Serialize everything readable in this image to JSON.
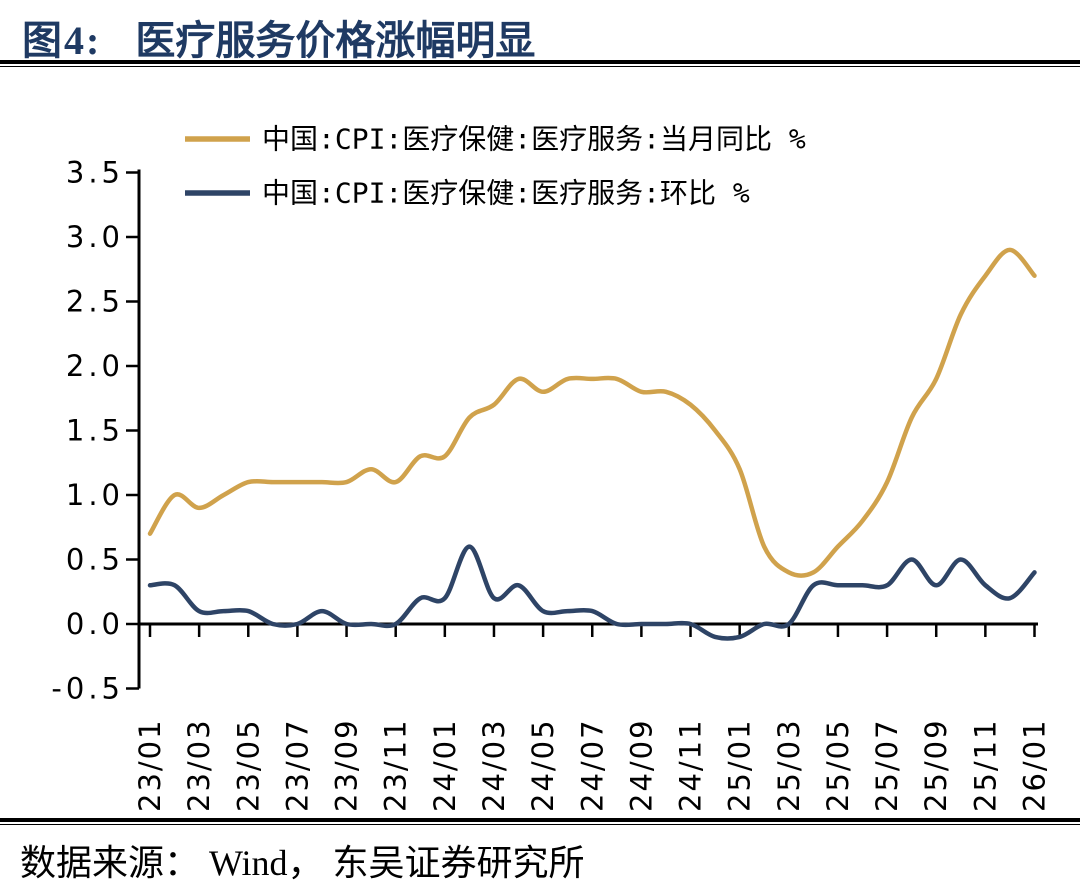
{
  "header": {
    "figure_label": "图4:",
    "title": "医疗服务价格涨幅明显"
  },
  "footer": {
    "source": "数据来源： Wind， 东吴证券研究所"
  },
  "colors": {
    "accent_gold": "#D0A24C",
    "accent_navy": "#2E4466",
    "title_navy": "#1F3A63",
    "axis_black": "#000000",
    "background": "#FFFFFF"
  },
  "chart_data": {
    "type": "line",
    "grid": false,
    "legend_position": "top-left",
    "ylim": [
      -0.5,
      3.5
    ],
    "y_tick_labels": [
      "3.5",
      "3.0",
      "2.5",
      "2.0",
      "1.5",
      "1.0",
      "0.5",
      "0.0",
      "-0.5"
    ],
    "x_tick_labels": [
      "23/01",
      "23/03",
      "23/05",
      "23/07",
      "23/09",
      "23/11",
      "24/01",
      "24/03",
      "24/05",
      "24/07",
      "24/09",
      "24/11",
      "25/01",
      "25/03",
      "25/05",
      "25/07",
      "25/09",
      "25/11",
      "26/01"
    ],
    "x_frequency": "monthly",
    "x_range": [
      "2023-01",
      "2026-01"
    ],
    "series": [
      {
        "name": "中国:CPI:医疗保健:医疗服务:当月同比 %",
        "color": "#D0A24C",
        "values": [
          0.7,
          1.0,
          0.9,
          1.0,
          1.1,
          1.1,
          1.1,
          1.1,
          1.1,
          1.2,
          1.1,
          1.3,
          1.3,
          1.6,
          1.7,
          1.9,
          1.8,
          1.9,
          1.9,
          1.9,
          1.8,
          1.8,
          1.7,
          1.5,
          1.2,
          0.6,
          0.4,
          0.4,
          0.6,
          0.8,
          1.1,
          1.6,
          1.9,
          2.4,
          2.7,
          2.9,
          2.7
        ]
      },
      {
        "name": "中国:CPI:医疗保健:医疗服务:环比 %",
        "color": "#2E4466",
        "values": [
          0.3,
          0.3,
          0.1,
          0.1,
          0.1,
          0.0,
          0.0,
          0.1,
          0.0,
          0.0,
          0.0,
          0.2,
          0.2,
          0.6,
          0.2,
          0.3,
          0.1,
          0.1,
          0.1,
          0.0,
          0.0,
          0.0,
          0.0,
          -0.1,
          -0.1,
          0.0,
          0.0,
          0.3,
          0.3,
          0.3,
          0.3,
          0.5,
          0.3,
          0.5,
          0.3,
          0.2,
          0.4
        ]
      }
    ]
  }
}
